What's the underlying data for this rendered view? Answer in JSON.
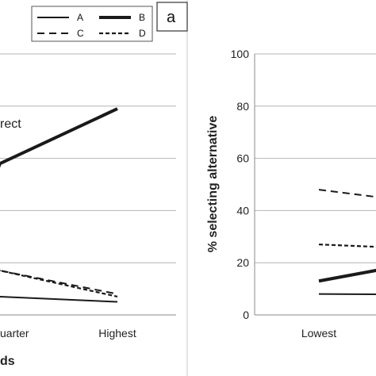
{
  "panel_label": "a",
  "legend": [
    "A",
    "B",
    "C",
    "D"
  ],
  "left_panel": {
    "x_tick_labels": [
      "uarter",
      "Highest"
    ],
    "x_axis_label": "ds",
    "annotation": "rect"
  },
  "chart_data": {
    "type": "line",
    "categories": [
      "Lowest",
      "Upper quarter",
      "Highest"
    ],
    "xlabel": "",
    "ylabel": "% selecting alternative",
    "ylim": [
      0,
      100
    ],
    "yticks": [
      0,
      20,
      40,
      60,
      80,
      100
    ],
    "grid": true,
    "legend_placement": "top",
    "series": [
      {
        "name": "A",
        "style": "solid-thin",
        "values": [
          8,
          7,
          5
        ]
      },
      {
        "name": "B",
        "style": "solid-thick",
        "values": [
          13,
          58,
          79
        ]
      },
      {
        "name": "C",
        "style": "dashed-long",
        "values": [
          48,
          17,
          8
        ]
      },
      {
        "name": "D",
        "style": "dashed-short",
        "values": [
          27,
          17,
          7
        ]
      }
    ]
  }
}
